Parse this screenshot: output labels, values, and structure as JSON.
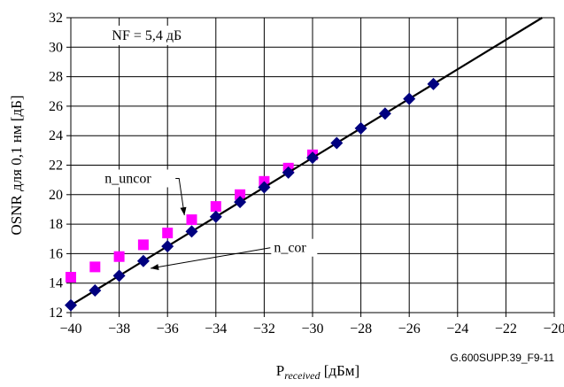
{
  "chart_data": {
    "type": "scatter",
    "xlabel_main": "P",
    "xlabel_sub": "received",
    "xlabel_unit": " [дБм]",
    "ylabel": "OSNR для 0,1 нм [дБ]",
    "xlim": [
      -40,
      -20
    ],
    "ylim": [
      12,
      32
    ],
    "x_ticks": [
      "−40",
      "−38",
      "−36",
      "−34",
      "−32",
      "−30",
      "−28",
      "−26",
      "−24",
      "−22",
      "−20"
    ],
    "y_ticks": [
      "12",
      "14",
      "16",
      "18",
      "20",
      "22",
      "24",
      "26",
      "28",
      "30",
      "32"
    ],
    "grid": true,
    "series": [
      {
        "name": "n_uncor",
        "marker": "square",
        "color": "#ff00ff",
        "x": [
          -40,
          -39,
          -38,
          -37,
          -36,
          -35,
          -34,
          -33,
          -32,
          -31,
          -30
        ],
        "y": [
          14.4,
          15.1,
          15.8,
          16.6,
          17.4,
          18.3,
          19.2,
          20.0,
          20.9,
          21.8,
          22.7
        ]
      },
      {
        "name": "n_cor",
        "marker": "diamond",
        "color": "#000080",
        "x": [
          -40,
          -39,
          -38,
          -37,
          -36,
          -35,
          -34,
          -33,
          -32,
          -31,
          -30,
          -29,
          -28,
          -27,
          -26,
          -25
        ],
        "y": [
          12.5,
          13.5,
          14.5,
          15.5,
          16.5,
          17.5,
          18.5,
          19.5,
          20.5,
          21.5,
          22.5,
          23.5,
          24.5,
          25.5,
          26.5,
          27.5
        ]
      }
    ],
    "fit_line": {
      "x": [
        -40.2,
        -20
      ],
      "y": [
        12.3,
        32.5
      ],
      "color": "#000000"
    },
    "annotations": {
      "nf": "NF = 5,4 дБ",
      "uncor_label": "n_uncor",
      "cor_label": "n_cor"
    },
    "figure_id": "G.600SUPP.39_F9-11"
  }
}
